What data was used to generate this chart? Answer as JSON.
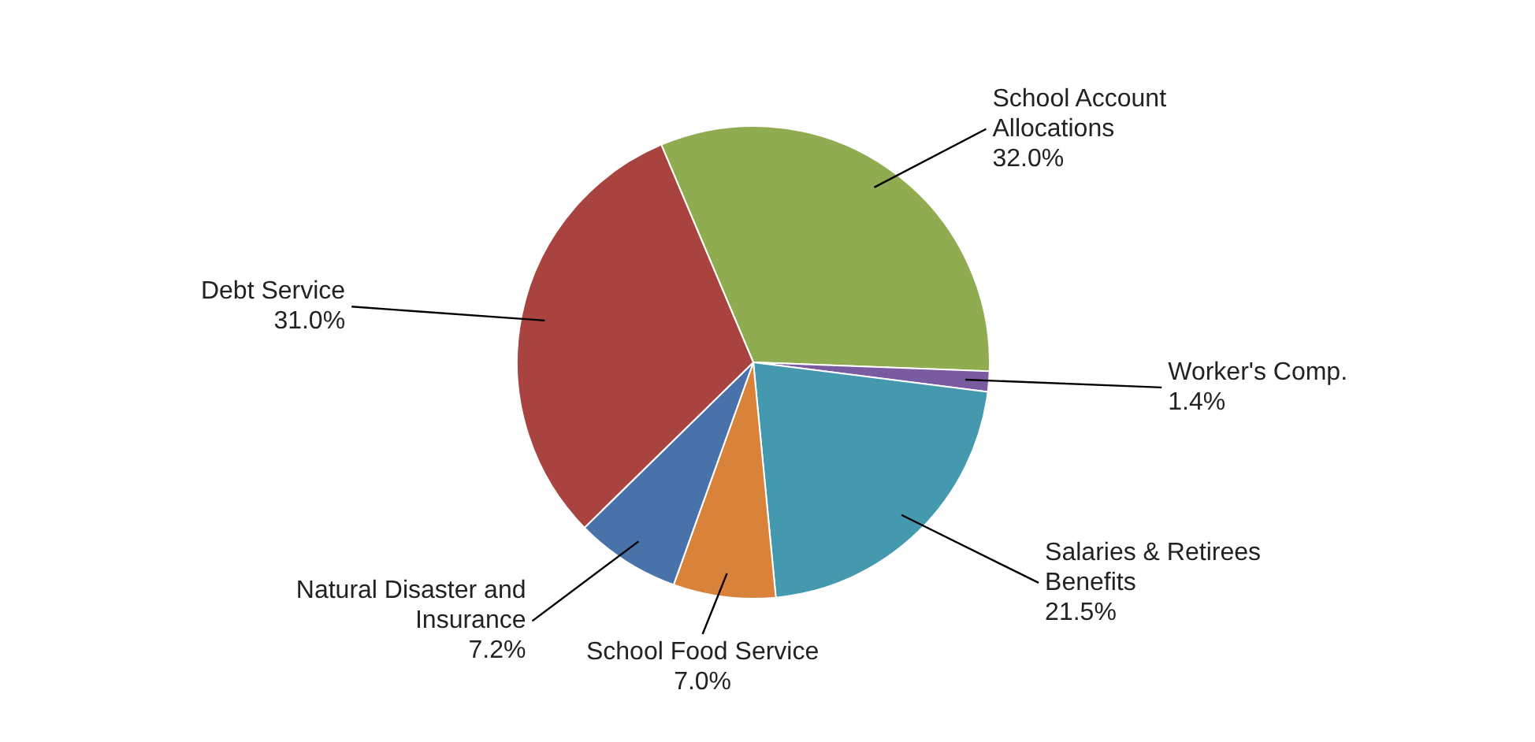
{
  "chart_data": {
    "type": "pie",
    "categories": [
      "School Account Allocations",
      "Worker's Comp.",
      "Salaries & Retirees Benefits",
      "School Food Service",
      "Natural Disaster and Insurance",
      "Debt Service"
    ],
    "values": [
      32.0,
      1.4,
      21.5,
      7.0,
      7.2,
      31.0
    ],
    "value_labels": [
      "32.0%",
      "1.4%",
      "21.5%",
      "7.0%",
      "7.2%",
      "31.0%"
    ],
    "colors": [
      "#8fac50",
      "#7a5aa0",
      "#4599ae",
      "#d9823a",
      "#4a72aa",
      "#a8433f"
    ]
  }
}
